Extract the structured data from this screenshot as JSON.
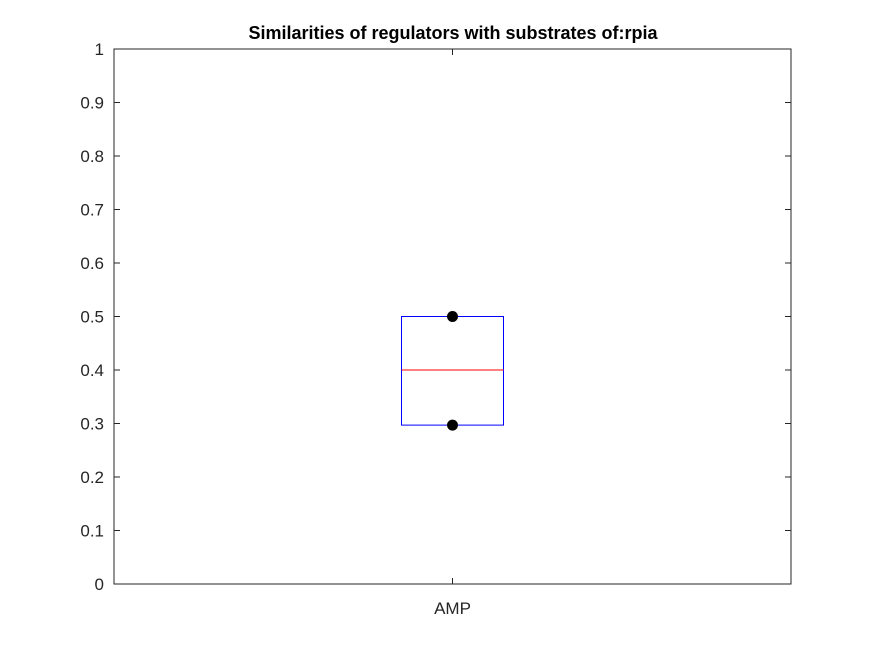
{
  "chart_data": {
    "type": "box",
    "title": "Similarities of regulators with substrates of:rpia",
    "xlabel": "",
    "ylabel": "",
    "categories": [
      "AMP"
    ],
    "ylim": [
      0,
      1
    ],
    "yticks": [
      0,
      0.1,
      0.2,
      0.3,
      0.4,
      0.5,
      0.6,
      0.7,
      0.8,
      0.9,
      1
    ],
    "ytick_labels": [
      "0",
      "0.1",
      "0.2",
      "0.3",
      "0.4",
      "0.5",
      "0.6",
      "0.7",
      "0.8",
      "0.9",
      "1"
    ],
    "grid": false,
    "boxes": [
      {
        "category": "AMP",
        "q1": 0.297,
        "median": 0.4,
        "q3": 0.5,
        "points": [
          0.5,
          0.297
        ]
      }
    ],
    "colors": {
      "box": "#0000ff",
      "median": "#ff0000",
      "points": "#000000",
      "axes": "#262626"
    }
  }
}
